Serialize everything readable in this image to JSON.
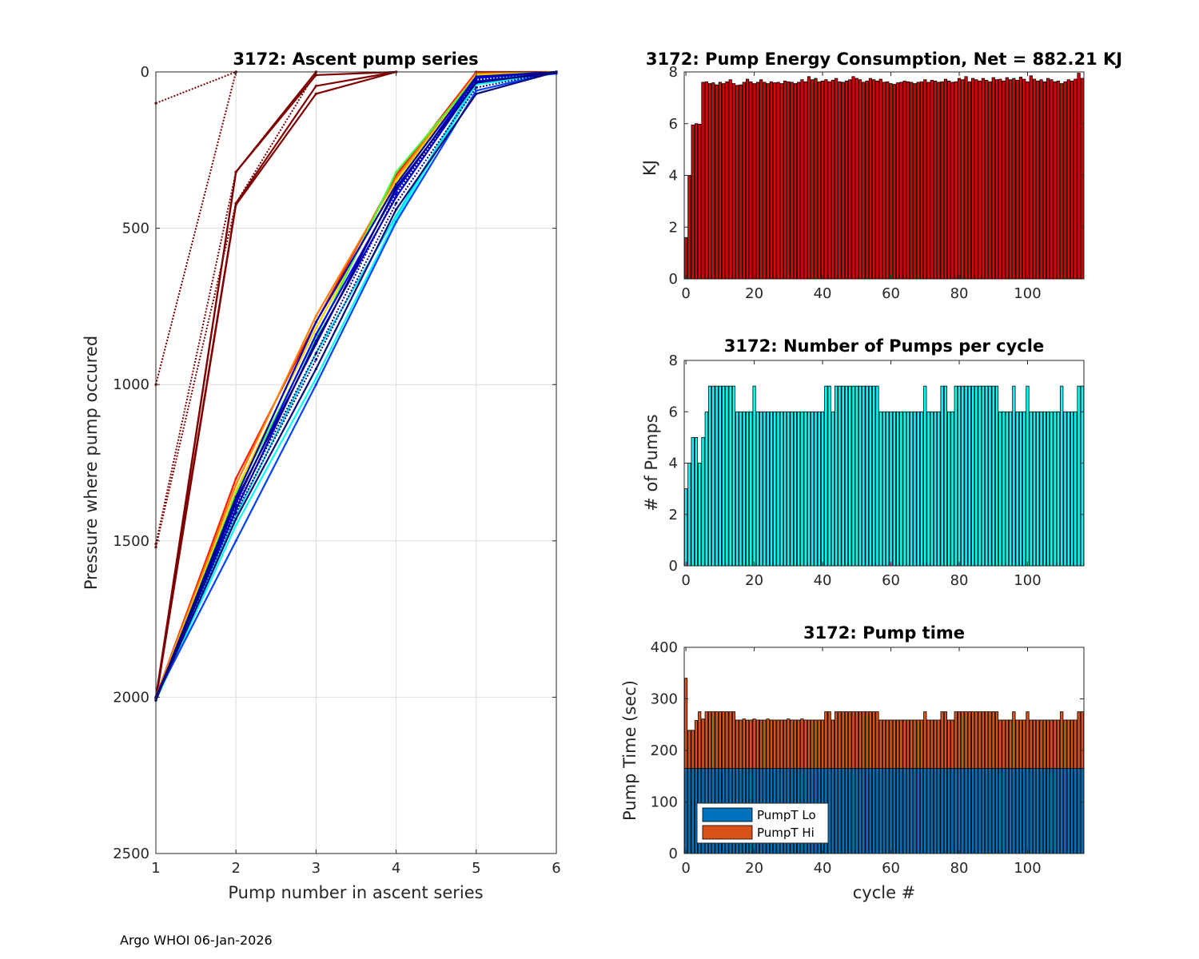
{
  "footer": "Argo WHOI 06-Jan-2026",
  "colors": {
    "energy": "#e00000",
    "pumps": "#00ffff",
    "lo": "#0072bd",
    "hi": "#d95319"
  },
  "chart_data": [
    {
      "id": "ascent",
      "type": "line",
      "title": "3172: Ascent pump series",
      "xlabel": "Pump number in ascent series",
      "ylabel": "Pressure where pump occured",
      "xlim": [
        1,
        6
      ],
      "ylim": [
        0,
        2500
      ],
      "yreversed": true,
      "xticks": [
        1,
        2,
        3,
        4,
        5,
        6
      ],
      "yticks": [
        0,
        500,
        1000,
        1500,
        2000,
        2500
      ],
      "grid": true,
      "series": [
        {
          "name": "early-1",
          "color": "#7f0000",
          "dash": true,
          "values": [
            100,
            0
          ]
        },
        {
          "name": "early-2",
          "color": "#7f0000",
          "dash": true,
          "values": [
            1000,
            0
          ]
        },
        {
          "name": "early-3",
          "color": "#7f0000",
          "dash": true,
          "values": [
            1510,
            320,
            0
          ]
        },
        {
          "name": "early-4",
          "color": "#7f0000",
          "dash": true,
          "values": [
            1520,
            420,
            0
          ]
        },
        {
          "name": "early-5",
          "color": "#7f0000",
          "dash": false,
          "values": [
            2000,
            320,
            0
          ]
        },
        {
          "name": "early-6",
          "color": "#7f0000",
          "dash": false,
          "values": [
            2010,
            320,
            10,
            0
          ]
        },
        {
          "name": "early-7",
          "color": "#7f0000",
          "dash": false,
          "values": [
            2000,
            420,
            45,
            0
          ]
        },
        {
          "name": "early-8",
          "color": "#7f0000",
          "dash": false,
          "values": [
            2010,
            425,
            70,
            0
          ]
        },
        {
          "name": "mid-1",
          "color": "#ff1a00",
          "dash": false,
          "values": [
            2000,
            1300,
            800,
            330,
            0,
            0
          ]
        },
        {
          "name": "mid-2",
          "color": "#ff8000",
          "dash": false,
          "values": [
            2000,
            1320,
            780,
            340,
            5,
            0
          ]
        },
        {
          "name": "mid-3",
          "color": "#ffd200",
          "dash": false,
          "values": [
            2005,
            1340,
            820,
            350,
            10,
            0
          ]
        },
        {
          "name": "mid-4",
          "color": "#40ff40",
          "dash": false,
          "values": [
            2010,
            1350,
            850,
            320,
            15,
            0
          ]
        },
        {
          "name": "mid-5",
          "color": "#00e0e0",
          "dash": false,
          "values": [
            2000,
            1420,
            900,
            460,
            30,
            0
          ]
        },
        {
          "name": "mid-6",
          "color": "#00ffff",
          "dash": false,
          "values": [
            2010,
            1450,
            980,
            470,
            40,
            5
          ]
        },
        {
          "name": "late-1",
          "color": "#0040ff",
          "dash": false,
          "values": [
            2000,
            1500,
            1000,
            480,
            60,
            0
          ]
        },
        {
          "name": "late-2",
          "color": "#0000ff",
          "dash": false,
          "values": [
            2010,
            1380,
            840,
            380,
            20,
            0
          ]
        },
        {
          "name": "late-3",
          "color": "#0000d0",
          "dash": false,
          "values": [
            2000,
            1400,
            860,
            400,
            30,
            5
          ]
        },
        {
          "name": "late-4",
          "color": "#0000b0",
          "dash": false,
          "values": [
            2005,
            1360,
            800,
            360,
            15,
            0
          ]
        },
        {
          "name": "late-5",
          "color": "#000090",
          "dash": true,
          "values": [
            2000,
            1390,
            900,
            390,
            25,
            0
          ]
        },
        {
          "name": "late-6",
          "color": "#000080",
          "dash": false,
          "values": [
            2010,
            1370,
            870,
            370,
            35,
            0
          ]
        },
        {
          "name": "late-7",
          "color": "#00008f",
          "dash": true,
          "values": [
            2000,
            1410,
            920,
            420,
            50,
            0
          ]
        },
        {
          "name": "late-8",
          "color": "#0a0a7a",
          "dash": false,
          "values": [
            2005,
            1430,
            950,
            440,
            70,
            0
          ]
        }
      ]
    },
    {
      "id": "energy",
      "type": "bar",
      "title": "3172: Pump Energy Consumption,  Net = 882.21 KJ",
      "ylabel": "KJ",
      "xlabel": "",
      "xlim": [
        -0.5,
        116.5
      ],
      "ylim": [
        0,
        8
      ],
      "xticks": [
        0,
        20,
        40,
        60,
        80,
        100
      ],
      "yticks": [
        0,
        2,
        4,
        6,
        8
      ],
      "grid": false,
      "x": [
        0,
        1,
        2,
        3,
        4,
        5,
        6,
        7,
        8,
        9,
        10,
        11,
        12,
        13,
        14,
        15,
        16,
        17,
        18,
        19,
        20,
        21,
        22,
        23,
        24,
        25,
        26,
        27,
        28,
        29,
        30,
        31,
        32,
        33,
        34,
        35,
        36,
        37,
        38,
        39,
        40,
        41,
        42,
        43,
        44,
        45,
        46,
        47,
        48,
        49,
        50,
        51,
        52,
        53,
        54,
        55,
        56,
        57,
        58,
        59,
        60,
        61,
        62,
        63,
        64,
        65,
        66,
        67,
        68,
        69,
        70,
        71,
        72,
        73,
        74,
        75,
        76,
        77,
        78,
        79,
        80,
        81,
        82,
        83,
        84,
        85,
        86,
        87,
        88,
        89,
        90,
        91,
        92,
        93,
        94,
        95,
        96,
        97,
        98,
        99,
        100,
        101,
        102,
        103,
        104,
        105,
        106,
        107,
        108,
        109,
        110,
        111,
        112,
        113,
        114,
        115,
        116
      ],
      "values": [
        1.6,
        4.0,
        5.95,
        6.0,
        5.98,
        7.6,
        7.62,
        7.55,
        7.58,
        7.5,
        7.6,
        7.55,
        7.62,
        7.7,
        7.55,
        7.48,
        7.5,
        7.6,
        7.72,
        7.62,
        7.55,
        7.6,
        7.7,
        7.6,
        7.55,
        7.62,
        7.58,
        7.6,
        7.55,
        7.65,
        7.62,
        7.6,
        7.55,
        7.6,
        7.7,
        7.62,
        7.82,
        7.7,
        7.75,
        7.62,
        7.65,
        7.7,
        7.62,
        7.68,
        7.75,
        7.62,
        7.6,
        7.65,
        7.7,
        7.82,
        7.75,
        7.7,
        7.6,
        7.65,
        7.75,
        7.7,
        7.65,
        7.72,
        7.6,
        7.62,
        7.55,
        7.52,
        7.58,
        7.6,
        7.65,
        7.62,
        7.6,
        7.55,
        7.6,
        7.62,
        7.7,
        7.6,
        7.68,
        7.65,
        7.6,
        7.62,
        7.72,
        7.65,
        7.6,
        7.62,
        7.75,
        7.7,
        7.82,
        7.62,
        7.75,
        7.7,
        7.65,
        7.75,
        7.68,
        7.62,
        7.78,
        7.7,
        7.72,
        7.65,
        7.78,
        7.7,
        7.75,
        7.68,
        7.8,
        7.72,
        7.62,
        7.85,
        7.72,
        7.65,
        7.7,
        7.62,
        7.75,
        7.7,
        7.62,
        7.65,
        7.55,
        7.62,
        7.7,
        7.65,
        7.72,
        7.95,
        7.75
      ]
    },
    {
      "id": "numpumps",
      "type": "bar",
      "title": "3172: Number of Pumps per cycle",
      "ylabel": "# of Pumps",
      "xlabel": "",
      "xlim": [
        -0.5,
        116.5
      ],
      "ylim": [
        0,
        8
      ],
      "xticks": [
        0,
        20,
        40,
        60,
        80,
        100
      ],
      "yticks": [
        0,
        2,
        4,
        6,
        8
      ],
      "grid": false,
      "x": [
        0,
        1,
        2,
        3,
        4,
        5,
        6,
        7,
        8,
        9,
        10,
        11,
        12,
        13,
        14,
        15,
        16,
        17,
        18,
        19,
        20,
        21,
        22,
        23,
        24,
        25,
        26,
        27,
        28,
        29,
        30,
        31,
        32,
        33,
        34,
        35,
        36,
        37,
        38,
        39,
        40,
        41,
        42,
        43,
        44,
        45,
        46,
        47,
        48,
        49,
        50,
        51,
        52,
        53,
        54,
        55,
        56,
        57,
        58,
        59,
        60,
        61,
        62,
        63,
        64,
        65,
        66,
        67,
        68,
        69,
        70,
        71,
        72,
        73,
        74,
        75,
        76,
        77,
        78,
        79,
        80,
        81,
        82,
        83,
        84,
        85,
        86,
        87,
        88,
        89,
        90,
        91,
        92,
        93,
        94,
        95,
        96,
        97,
        98,
        99,
        100,
        101,
        102,
        103,
        104,
        105,
        106,
        107,
        108,
        109,
        110,
        111,
        112,
        113,
        114,
        115,
        116
      ],
      "values": [
        3,
        4,
        5,
        5,
        4,
        5,
        6,
        7,
        7,
        7,
        7,
        7,
        7,
        7,
        7,
        6,
        6,
        6,
        6,
        6,
        7,
        6,
        6,
        6,
        6,
        6,
        6,
        6,
        6,
        6,
        6,
        6,
        6,
        6,
        6,
        6,
        6,
        6,
        6,
        6,
        6,
        7,
        7,
        6,
        7,
        7,
        7,
        7,
        7,
        7,
        7,
        7,
        7,
        7,
        7,
        7,
        7,
        6,
        6,
        6,
        6,
        6,
        6,
        6,
        6,
        6,
        6,
        6,
        6,
        6,
        7,
        6,
        6,
        6,
        6,
        7,
        7,
        6,
        6,
        7,
        7,
        7,
        7,
        7,
        7,
        7,
        7,
        7,
        7,
        7,
        7,
        7,
        6,
        6,
        6,
        6,
        7,
        6,
        6,
        6,
        7,
        6,
        6,
        6,
        6,
        6,
        6,
        6,
        6,
        6,
        7,
        6,
        6,
        6,
        6,
        7,
        7
      ]
    },
    {
      "id": "pumptime",
      "type": "bar",
      "stacked": true,
      "title": "3172: Pump time",
      "ylabel": "Pump Time (sec)",
      "xlabel": "cycle #",
      "xlim": [
        -0.5,
        116.5
      ],
      "ylim": [
        0,
        400
      ],
      "xticks": [
        0,
        20,
        40,
        60,
        80,
        100
      ],
      "yticks": [
        0,
        100,
        200,
        300,
        400
      ],
      "grid": false,
      "legend": {
        "position": "bottom-left",
        "entries": [
          "PumpT Lo",
          "PumpT Hi"
        ]
      },
      "x": [
        0,
        1,
        2,
        3,
        4,
        5,
        6,
        7,
        8,
        9,
        10,
        11,
        12,
        13,
        14,
        15,
        16,
        17,
        18,
        19,
        20,
        21,
        22,
        23,
        24,
        25,
        26,
        27,
        28,
        29,
        30,
        31,
        32,
        33,
        34,
        35,
        36,
        37,
        38,
        39,
        40,
        41,
        42,
        43,
        44,
        45,
        46,
        47,
        48,
        49,
        50,
        51,
        52,
        53,
        54,
        55,
        56,
        57,
        58,
        59,
        60,
        61,
        62,
        63,
        64,
        65,
        66,
        67,
        68,
        69,
        70,
        71,
        72,
        73,
        74,
        75,
        76,
        77,
        78,
        79,
        80,
        81,
        82,
        83,
        84,
        85,
        86,
        87,
        88,
        89,
        90,
        91,
        92,
        93,
        94,
        95,
        96,
        97,
        98,
        99,
        100,
        101,
        102,
        103,
        104,
        105,
        106,
        107,
        108,
        109,
        110,
        111,
        112,
        113,
        114,
        115,
        116
      ],
      "series": [
        {
          "name": "PumpT Lo",
          "values": [
            165,
            165,
            165,
            165,
            165,
            165,
            165,
            165,
            165,
            165,
            165,
            165,
            165,
            165,
            165,
            165,
            165,
            165,
            165,
            165,
            165,
            165,
            165,
            165,
            165,
            165,
            165,
            165,
            165,
            165,
            165,
            165,
            165,
            165,
            165,
            165,
            165,
            165,
            165,
            165,
            165,
            165,
            165,
            165,
            165,
            165,
            165,
            165,
            165,
            165,
            165,
            165,
            165,
            165,
            165,
            165,
            165,
            165,
            165,
            165,
            165,
            165,
            165,
            165,
            165,
            165,
            165,
            165,
            165,
            165,
            165,
            165,
            165,
            165,
            165,
            165,
            165,
            165,
            165,
            165,
            165,
            165,
            165,
            165,
            165,
            165,
            165,
            165,
            165,
            165,
            165,
            165,
            165,
            165,
            165,
            165,
            165,
            165,
            165,
            165,
            165,
            165,
            165,
            165,
            165,
            165,
            165,
            165,
            165,
            165,
            165,
            165,
            165,
            165,
            165,
            165,
            165
          ]
        },
        {
          "name": "PumpT Hi",
          "values": [
            175,
            74,
            74,
            93,
            110,
            96,
            110,
            110,
            110,
            110,
            110,
            110,
            110,
            110,
            110,
            94,
            94,
            96,
            94,
            94,
            96,
            94,
            94,
            94,
            96,
            94,
            94,
            94,
            94,
            94,
            96,
            94,
            94,
            94,
            96,
            94,
            94,
            94,
            94,
            94,
            94,
            110,
            110,
            94,
            110,
            110,
            110,
            110,
            110,
            110,
            110,
            110,
            110,
            110,
            110,
            110,
            110,
            94,
            94,
            94,
            94,
            94,
            94,
            94,
            94,
            94,
            94,
            94,
            94,
            94,
            110,
            94,
            94,
            94,
            94,
            110,
            110,
            94,
            94,
            110,
            110,
            110,
            110,
            110,
            110,
            110,
            110,
            110,
            110,
            110,
            110,
            110,
            94,
            94,
            94,
            94,
            110,
            94,
            94,
            94,
            110,
            94,
            94,
            94,
            94,
            94,
            94,
            94,
            94,
            94,
            110,
            94,
            94,
            94,
            94,
            110,
            110
          ]
        }
      ]
    }
  ]
}
